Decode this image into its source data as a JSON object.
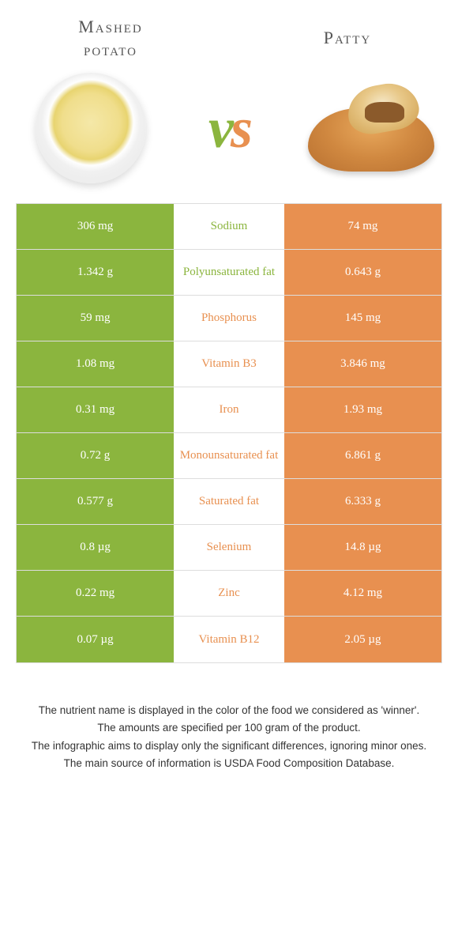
{
  "header": {
    "left_title_line1": "Mashed",
    "left_title_line2": "potato",
    "right_title": "Patty",
    "vs_v": "v",
    "vs_s": "s"
  },
  "colors": {
    "green": "#8bb53e",
    "orange": "#e89050"
  },
  "rows": [
    {
      "left": "306 mg",
      "mid": "Sodium",
      "right": "74 mg",
      "winner": "left"
    },
    {
      "left": "1.342 g",
      "mid": "Polyunsaturated fat",
      "right": "0.643 g",
      "winner": "left"
    },
    {
      "left": "59 mg",
      "mid": "Phosphorus",
      "right": "145 mg",
      "winner": "right"
    },
    {
      "left": "1.08 mg",
      "mid": "Vitamin B3",
      "right": "3.846 mg",
      "winner": "right"
    },
    {
      "left": "0.31 mg",
      "mid": "Iron",
      "right": "1.93 mg",
      "winner": "right"
    },
    {
      "left": "0.72 g",
      "mid": "Monounsaturated fat",
      "right": "6.861 g",
      "winner": "right"
    },
    {
      "left": "0.577 g",
      "mid": "Saturated fat",
      "right": "6.333 g",
      "winner": "right"
    },
    {
      "left": "0.8 µg",
      "mid": "Selenium",
      "right": "14.8 µg",
      "winner": "right"
    },
    {
      "left": "0.22 mg",
      "mid": "Zinc",
      "right": "4.12 mg",
      "winner": "right"
    },
    {
      "left": "0.07 µg",
      "mid": "Vitamin B12",
      "right": "2.05 µg",
      "winner": "right"
    }
  ],
  "footnotes": [
    "The nutrient name is displayed in the color of the food we considered as 'winner'.",
    "The amounts are specified per 100 gram of the product.",
    "The infographic aims to display only the significant differences, ignoring minor ones.",
    "The main source of information is USDA Food Composition Database."
  ]
}
